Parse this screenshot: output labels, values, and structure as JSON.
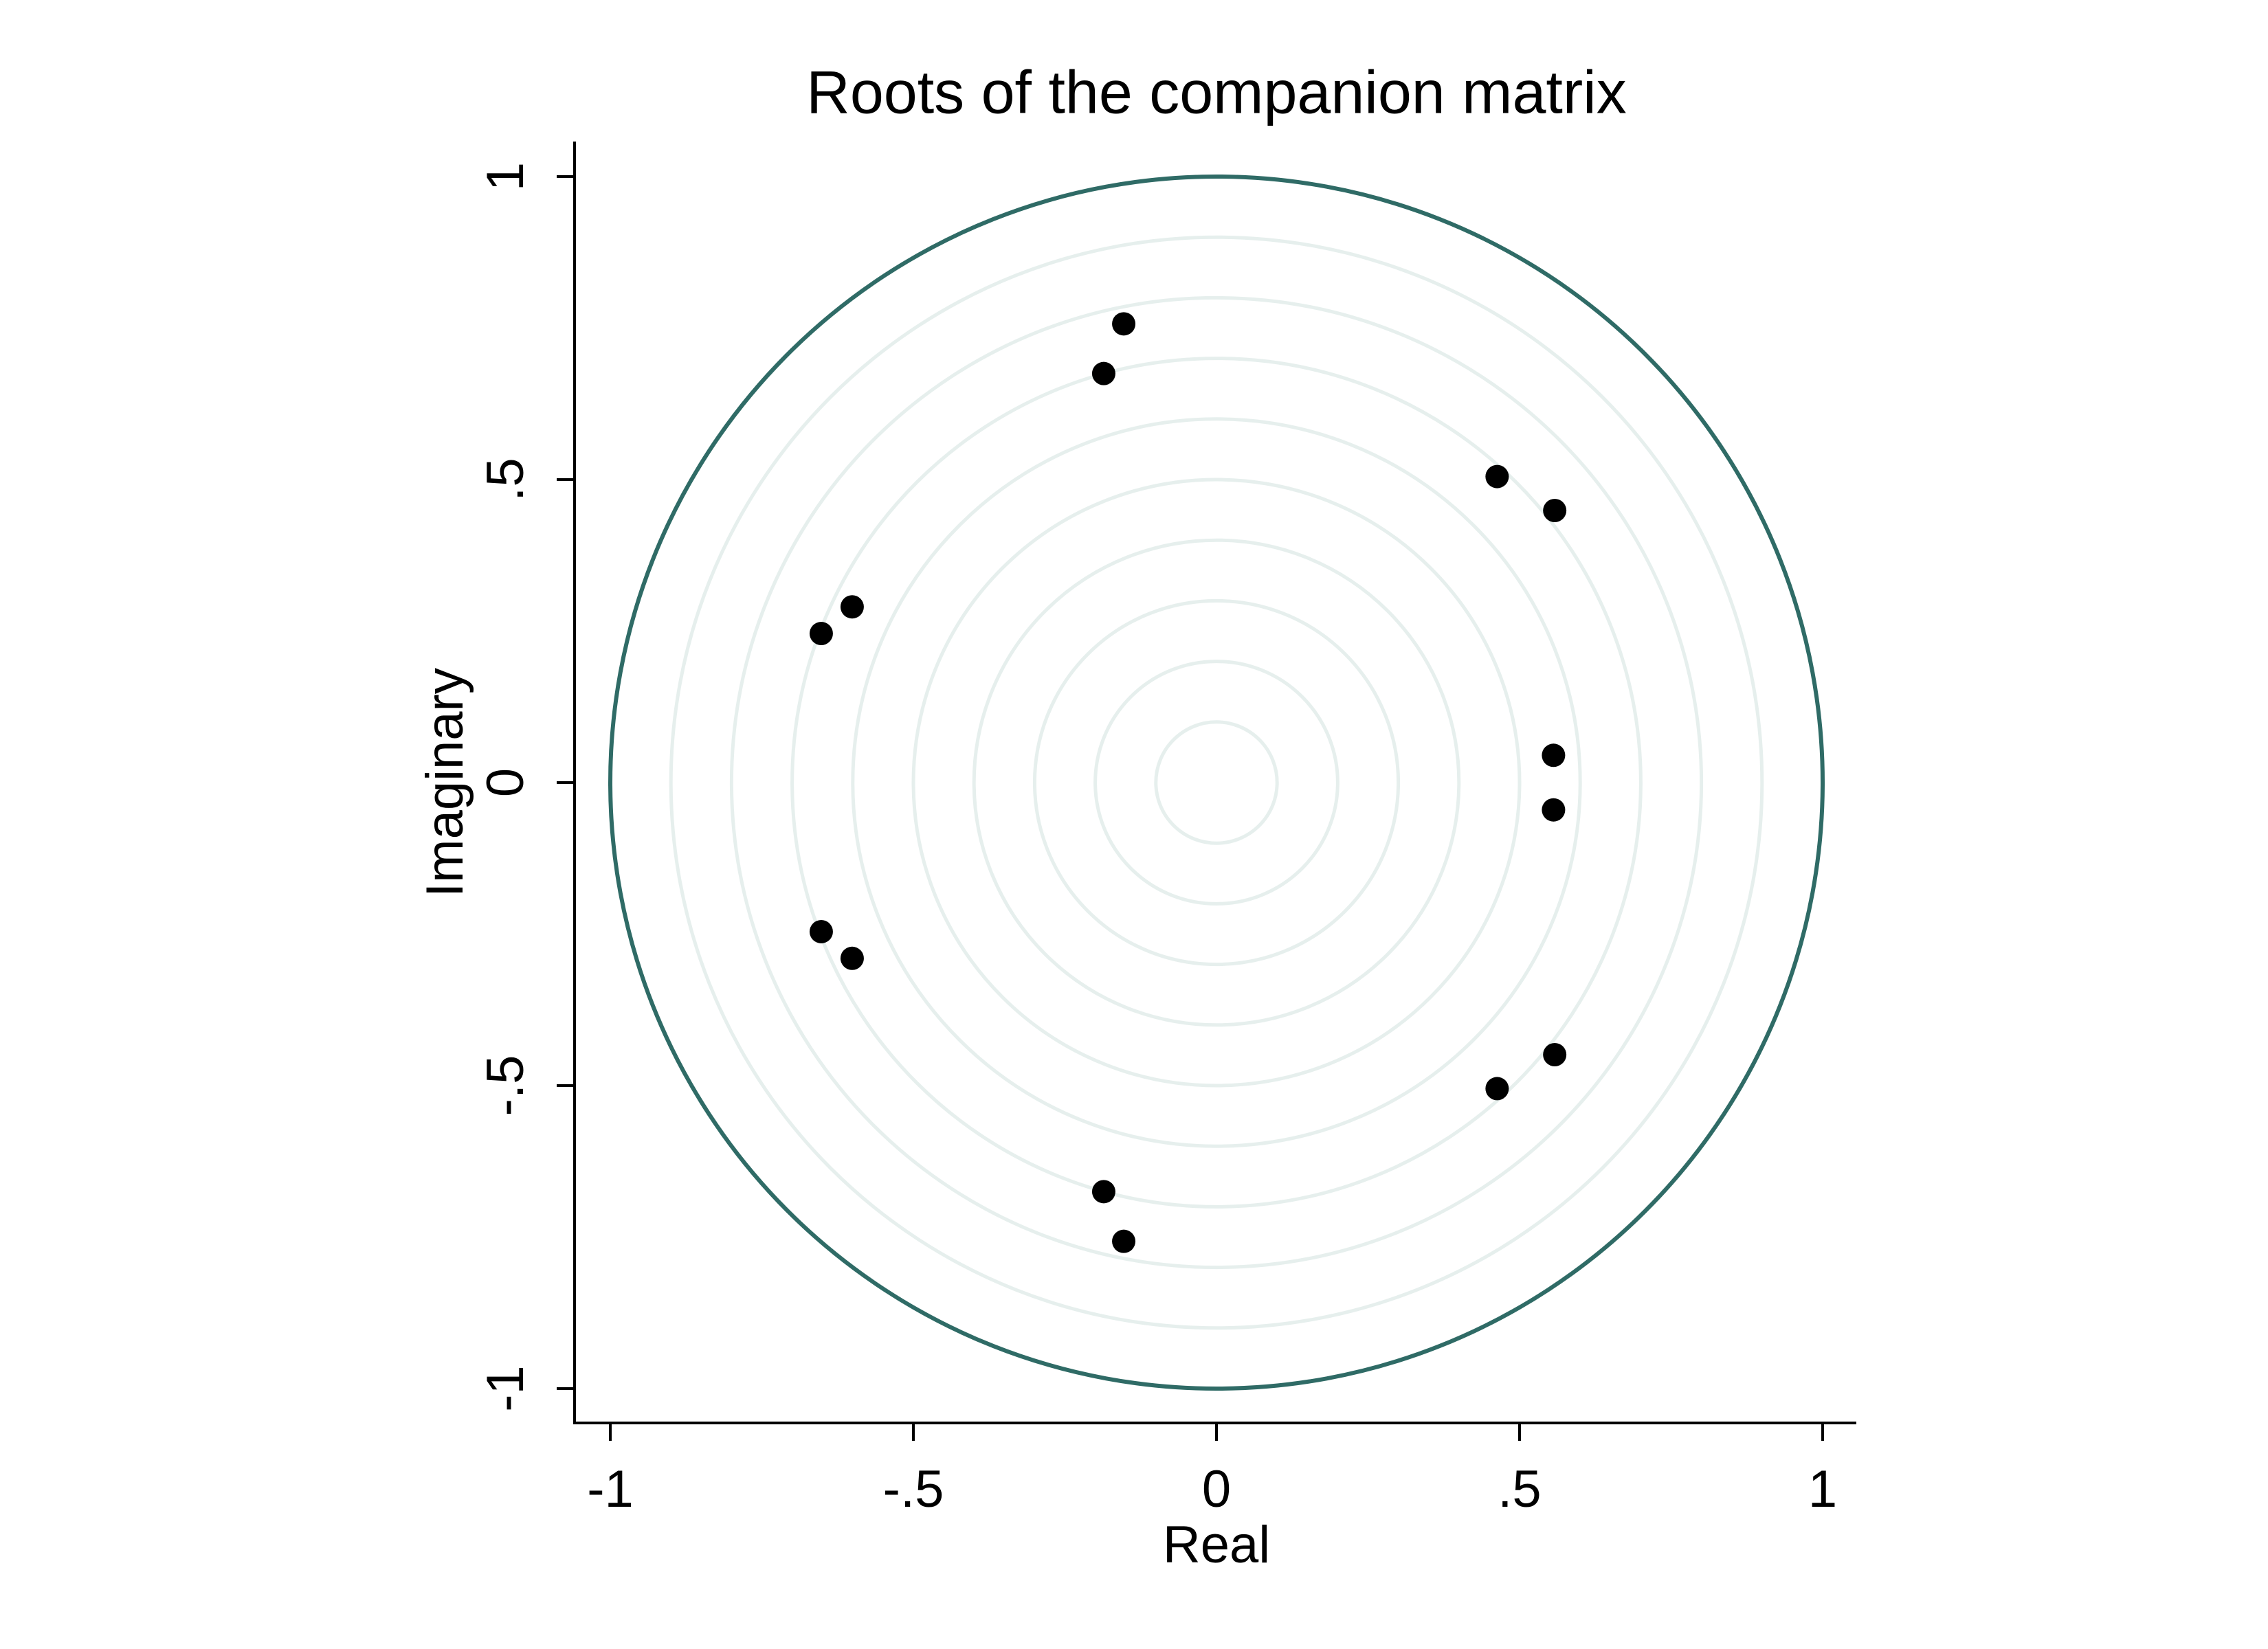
{
  "chart_data": {
    "type": "scatter",
    "title": "Roots of the companion matrix",
    "x_label": "Real",
    "y_label": "Imaginary",
    "color": "#000000",
    "circle_color": "#2f6b66",
    "x": [
      -0.153,
      -0.186,
      0.463,
      0.558,
      -0.601,
      -0.652,
      0.556,
      0.556,
      -0.652,
      -0.601,
      0.463,
      0.558,
      -0.186,
      -0.153
    ],
    "values": [
      0.757,
      0.675,
      0.505,
      0.449,
      0.29,
      0.246,
      0.045,
      -0.045,
      -0.246,
      -0.29,
      -0.505,
      -0.449,
      -0.675,
      -0.757
    ],
    "xlim": [
      -1,
      1
    ],
    "ylim": [
      -1,
      1
    ],
    "xticks": [
      -1,
      {
        "value": -0.5,
        "label": "-.5"
      },
      0,
      {
        "value": 0.5,
        "label": ".5"
      },
      1
    ],
    "yticks": [
      -1,
      {
        "value": -0.5,
        "label": "-.5"
      },
      0,
      {
        "value": 0.5,
        "label": ".5"
      },
      1
    ]
  }
}
